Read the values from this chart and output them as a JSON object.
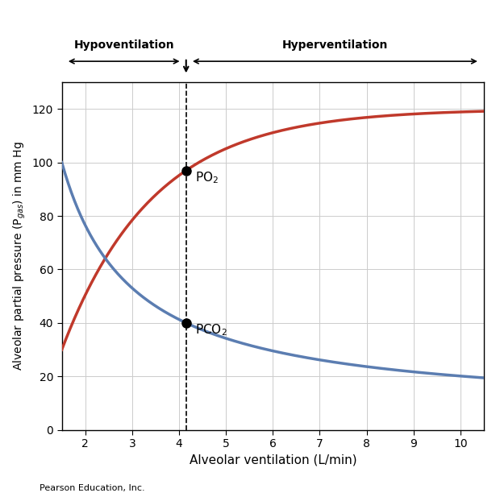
{
  "title": "",
  "xlabel": "Alveolar ventilation (L/min)",
  "xlim": [
    1.5,
    10.5
  ],
  "ylim": [
    0,
    130
  ],
  "xticks": [
    2,
    3,
    4,
    5,
    6,
    7,
    8,
    9,
    10
  ],
  "yticks": [
    0,
    20,
    40,
    60,
    80,
    100,
    120
  ],
  "dashed_x": 4.15,
  "po2_point": [
    4.15,
    97
  ],
  "pco2_point": [
    4.15,
    40
  ],
  "hypo_label": "Hypoventilation",
  "hyper_label": "Hyperventilation",
  "o2_color": "#c0392b",
  "co2_color": "#5b7db1",
  "grid_color": "#cccccc",
  "background_color": "#ffffff",
  "pearson_label": "Pearson Education, Inc."
}
